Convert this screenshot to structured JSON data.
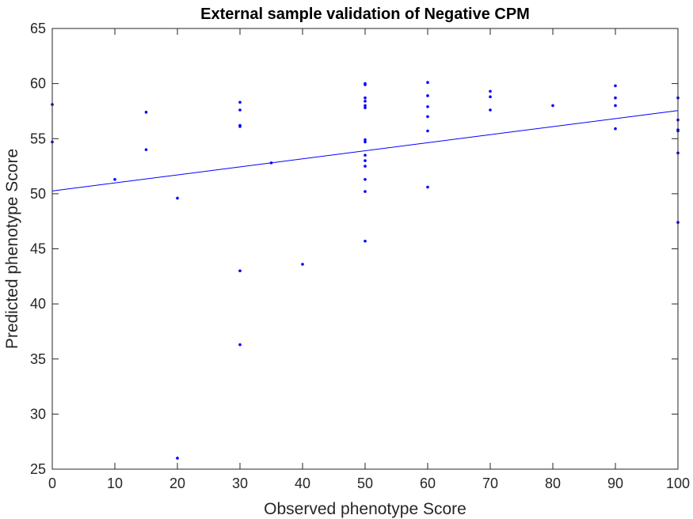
{
  "chart_data": {
    "type": "scatter",
    "title": "External sample validation of Negative CPM",
    "xlabel": "Observed phenotype Score",
    "ylabel": "Predicted phenotype Score",
    "xlim": [
      0,
      100
    ],
    "ylim": [
      25,
      65
    ],
    "xticks": [
      "0",
      "10",
      "20",
      "30",
      "40",
      "50",
      "60",
      "70",
      "80",
      "90",
      "100"
    ],
    "yticks": [
      "25",
      "30",
      "35",
      "40",
      "45",
      "50",
      "55",
      "60",
      "65"
    ],
    "grid": false,
    "legend": "none",
    "colors": {
      "points": "#0000ff",
      "fit_line": "#0000ff",
      "axes": "#262626"
    },
    "points": [
      {
        "x": 0,
        "y": 58.1
      },
      {
        "x": 0,
        "y": 54.7
      },
      {
        "x": 10,
        "y": 51.3
      },
      {
        "x": 15,
        "y": 57.4
      },
      {
        "x": 15,
        "y": 54.0
      },
      {
        "x": 20,
        "y": 49.6
      },
      {
        "x": 20,
        "y": 26.0
      },
      {
        "x": 30,
        "y": 58.3
      },
      {
        "x": 30,
        "y": 57.6
      },
      {
        "x": 30,
        "y": 56.1
      },
      {
        "x": 30,
        "y": 56.2
      },
      {
        "x": 30,
        "y": 43.0
      },
      {
        "x": 30,
        "y": 36.3
      },
      {
        "x": 35,
        "y": 52.8
      },
      {
        "x": 40,
        "y": 43.6
      },
      {
        "x": 50,
        "y": 60.0
      },
      {
        "x": 50,
        "y": 59.9
      },
      {
        "x": 50,
        "y": 58.7
      },
      {
        "x": 50,
        "y": 58.4
      },
      {
        "x": 50,
        "y": 58.0
      },
      {
        "x": 50,
        "y": 57.8
      },
      {
        "x": 50,
        "y": 54.9
      },
      {
        "x": 50,
        "y": 54.7
      },
      {
        "x": 50,
        "y": 53.5
      },
      {
        "x": 50,
        "y": 53.0
      },
      {
        "x": 50,
        "y": 52.5
      },
      {
        "x": 50,
        "y": 51.3
      },
      {
        "x": 50,
        "y": 50.2
      },
      {
        "x": 50,
        "y": 45.7
      },
      {
        "x": 60,
        "y": 60.1
      },
      {
        "x": 60,
        "y": 58.9
      },
      {
        "x": 60,
        "y": 57.9
      },
      {
        "x": 60,
        "y": 57.0
      },
      {
        "x": 60,
        "y": 55.7
      },
      {
        "x": 60,
        "y": 50.6
      },
      {
        "x": 70,
        "y": 59.3
      },
      {
        "x": 70,
        "y": 58.8
      },
      {
        "x": 70,
        "y": 57.6
      },
      {
        "x": 80,
        "y": 58.0
      },
      {
        "x": 90,
        "y": 59.8
      },
      {
        "x": 90,
        "y": 58.7
      },
      {
        "x": 90,
        "y": 58.0
      },
      {
        "x": 90,
        "y": 55.9
      },
      {
        "x": 100,
        "y": 58.7
      },
      {
        "x": 100,
        "y": 56.7
      },
      {
        "x": 100,
        "y": 55.8
      },
      {
        "x": 100,
        "y": 55.7
      },
      {
        "x": 100,
        "y": 53.7
      },
      {
        "x": 100,
        "y": 47.4
      }
    ],
    "fit_line": {
      "x": [
        0,
        100
      ],
      "y": [
        50.25,
        57.55
      ]
    }
  }
}
